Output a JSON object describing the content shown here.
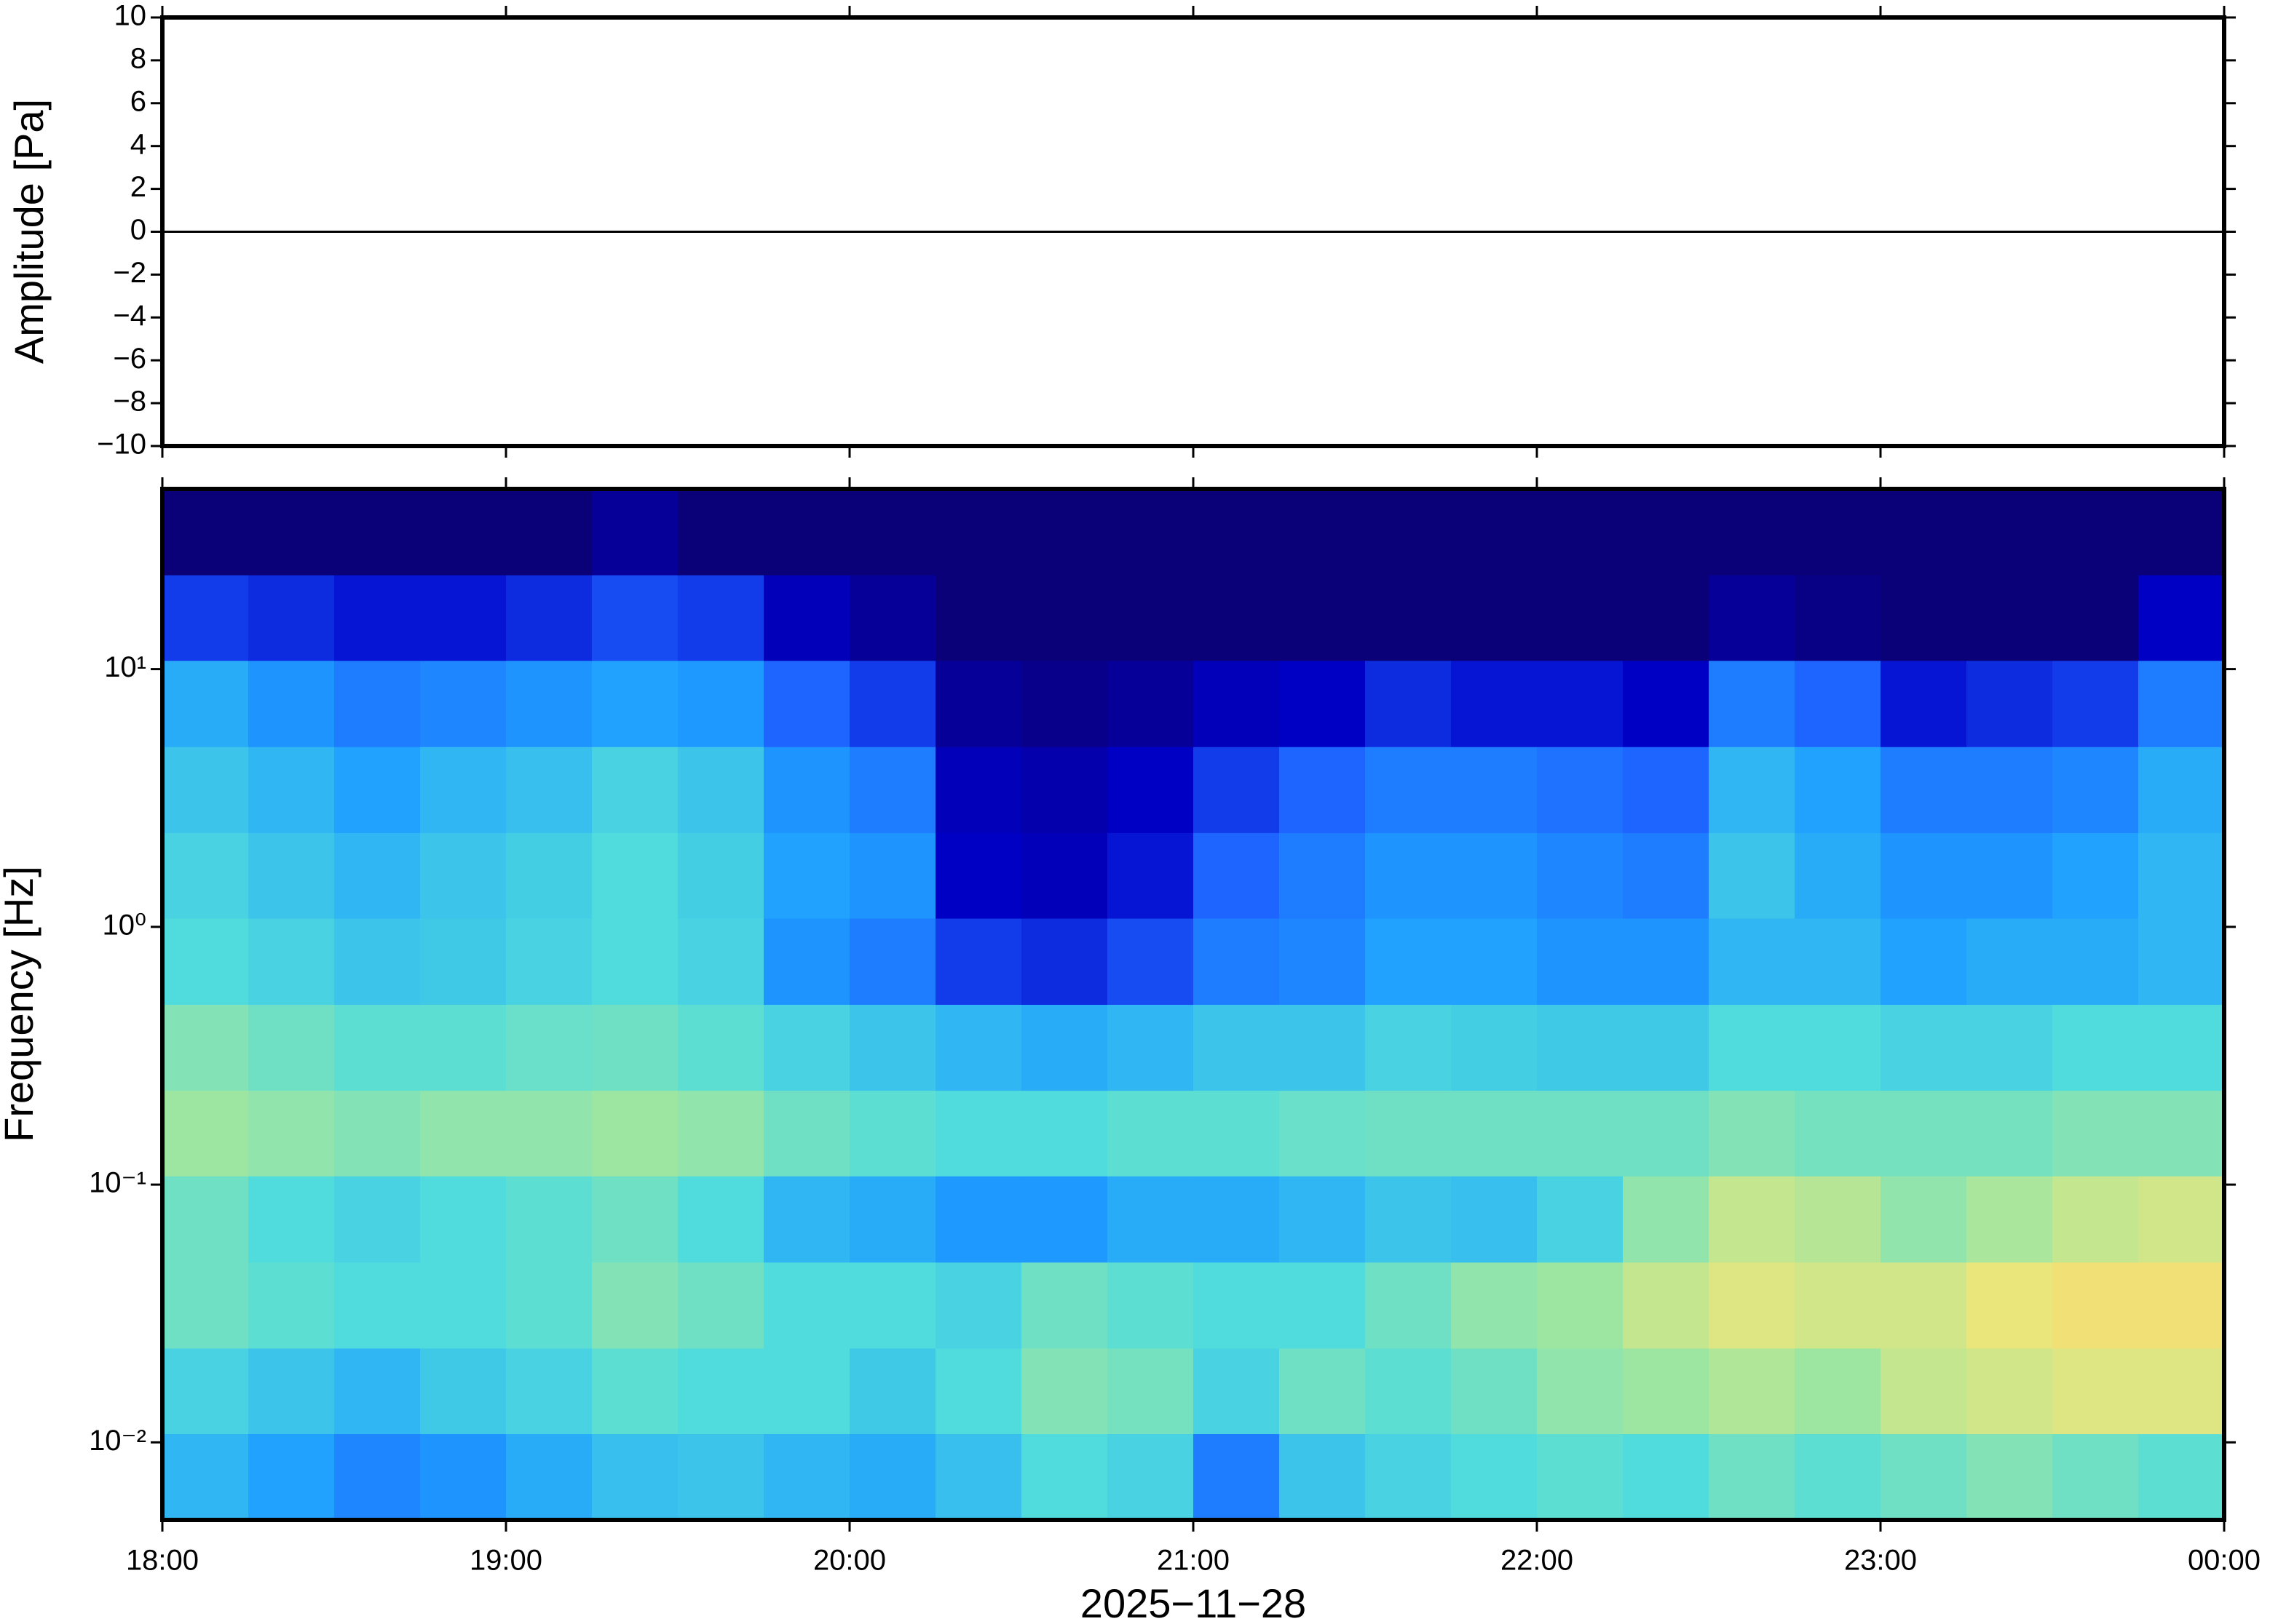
{
  "chart_data": [
    {
      "type": "line",
      "ylabel": "Amplitude [Pa]",
      "x": [
        18,
        18.5,
        19,
        19.5,
        20,
        20.5,
        21,
        21.5,
        22,
        22.5,
        23,
        23.5,
        24
      ],
      "values": [
        0,
        0,
        0,
        0,
        0,
        0,
        0,
        0,
        0,
        0,
        0,
        0,
        0
      ],
      "color": "#000000",
      "xlim": [
        18,
        24
      ],
      "xticks": [
        18,
        19,
        20,
        21,
        22,
        23,
        24
      ],
      "ylim": [
        -10,
        10
      ],
      "yticks": [
        {
          "value": -10,
          "label": "−10"
        },
        {
          "value": -8,
          "label": "−8"
        },
        {
          "value": -6,
          "label": "−6"
        },
        {
          "value": -4,
          "label": "−4"
        },
        {
          "value": -2,
          "label": "−2"
        },
        0,
        2,
        4,
        6,
        8,
        10
      ]
    },
    {
      "type": "heatmap",
      "ylabel": "Frequency [Hz]",
      "xlabel": "2025−11−28",
      "ylog": true,
      "xlim": [
        18,
        24
      ],
      "xticks": [
        {
          "value": 18,
          "label": "18:00"
        },
        {
          "value": 19,
          "label": "19:00"
        },
        {
          "value": 20,
          "label": "20:00"
        },
        {
          "value": 21,
          "label": "21:00"
        },
        {
          "value": 22,
          "label": "22:00"
        },
        {
          "value": 23,
          "label": "23:00"
        },
        {
          "value": 24,
          "label": "00:00"
        }
      ],
      "ylim": [
        0.005,
        50
      ],
      "yticks": [
        {
          "value": 0.01,
          "label": "10⁻²"
        },
        {
          "value": 0.1,
          "label": "10⁻¹"
        },
        {
          "value": 1,
          "label": "10⁰"
        },
        {
          "value": 10,
          "label": "10¹"
        }
      ],
      "x_edges": [
        18,
        18.25,
        18.5,
        18.75,
        19,
        19.25,
        19.5,
        19.75,
        20,
        20.25,
        20.5,
        20.75,
        21,
        21.25,
        21.5,
        21.75,
        22,
        22.25,
        22.5,
        22.75,
        23,
        23.25,
        23.5,
        23.75,
        24
      ],
      "y_edges": [
        0.005,
        0.0108,
        0.0232,
        0.05,
        0.108,
        0.232,
        0.5,
        1.08,
        2.32,
        5,
        10.8,
        23.2,
        50
      ],
      "zlim": [
        0,
        1
      ],
      "colormap": [
        "#0a0078",
        "#0000c8",
        "#1e64ff",
        "#1ea0ff",
        "#50dcdc",
        "#a0e6a0",
        "#f0e678",
        "#ffa050",
        "#e05030"
      ],
      "z": [
        [
          0.42,
          0.38,
          0.32,
          0.35,
          0.4,
          0.44,
          0.45,
          0.42,
          0.4,
          0.44,
          0.5,
          0.48,
          0.3,
          0.45,
          0.48,
          0.5,
          0.52,
          0.5,
          0.55,
          0.52,
          0.55,
          0.58,
          0.55,
          0.52
        ],
        [
          0.48,
          0.45,
          0.42,
          0.46,
          0.48,
          0.52,
          0.5,
          0.5,
          0.46,
          0.5,
          0.58,
          0.56,
          0.48,
          0.55,
          0.52,
          0.55,
          0.6,
          0.62,
          0.65,
          0.62,
          0.68,
          0.7,
          0.72,
          0.72
        ],
        [
          0.55,
          0.52,
          0.5,
          0.5,
          0.52,
          0.58,
          0.55,
          0.5,
          0.5,
          0.48,
          0.55,
          0.52,
          0.5,
          0.5,
          0.55,
          0.6,
          0.62,
          0.68,
          0.72,
          0.7,
          0.7,
          0.74,
          0.76,
          0.76
        ],
        [
          0.55,
          0.5,
          0.48,
          0.5,
          0.52,
          0.55,
          0.5,
          0.42,
          0.4,
          0.36,
          0.36,
          0.4,
          0.4,
          0.42,
          0.45,
          0.44,
          0.48,
          0.6,
          0.68,
          0.66,
          0.6,
          0.64,
          0.68,
          0.7
        ],
        [
          0.62,
          0.6,
          0.58,
          0.6,
          0.6,
          0.62,
          0.6,
          0.55,
          0.52,
          0.5,
          0.5,
          0.52,
          0.52,
          0.54,
          0.55,
          0.55,
          0.55,
          0.55,
          0.58,
          0.56,
          0.56,
          0.56,
          0.58,
          0.58
        ],
        [
          0.58,
          0.55,
          0.52,
          0.52,
          0.54,
          0.55,
          0.52,
          0.48,
          0.45,
          0.42,
          0.4,
          0.42,
          0.45,
          0.45,
          0.48,
          0.47,
          0.46,
          0.46,
          0.5,
          0.5,
          0.48,
          0.48,
          0.5,
          0.5
        ],
        [
          0.5,
          0.48,
          0.45,
          0.46,
          0.48,
          0.5,
          0.48,
          0.35,
          0.3,
          0.2,
          0.18,
          0.22,
          0.3,
          0.32,
          0.38,
          0.38,
          0.35,
          0.35,
          0.42,
          0.42,
          0.38,
          0.4,
          0.4,
          0.42
        ],
        [
          0.48,
          0.45,
          0.42,
          0.45,
          0.47,
          0.5,
          0.47,
          0.38,
          0.35,
          0.12,
          0.1,
          0.15,
          0.25,
          0.3,
          0.35,
          0.35,
          0.32,
          0.3,
          0.45,
          0.4,
          0.35,
          0.35,
          0.38,
          0.42
        ],
        [
          0.45,
          0.42,
          0.38,
          0.42,
          0.44,
          0.48,
          0.45,
          0.35,
          0.3,
          0.1,
          0.08,
          0.12,
          0.2,
          0.25,
          0.3,
          0.3,
          0.28,
          0.25,
          0.42,
          0.38,
          0.3,
          0.3,
          0.32,
          0.4
        ],
        [
          0.4,
          0.35,
          0.3,
          0.32,
          0.35,
          0.38,
          0.36,
          0.25,
          0.2,
          0.05,
          0.03,
          0.05,
          0.1,
          0.12,
          0.18,
          0.15,
          0.15,
          0.12,
          0.3,
          0.25,
          0.15,
          0.18,
          0.2,
          0.3
        ],
        [
          0.2,
          0.18,
          0.15,
          0.15,
          0.18,
          0.22,
          0.2,
          0.1,
          0.05,
          0,
          0,
          0,
          0,
          0,
          0,
          0,
          0,
          0,
          0.05,
          0.02,
          0,
          0,
          0,
          0.12
        ],
        [
          0,
          0,
          0,
          0,
          0,
          0.05,
          0,
          0,
          0,
          0,
          0,
          0,
          0,
          0,
          0,
          0,
          0,
          0,
          0,
          0,
          0,
          0,
          0,
          0
        ]
      ]
    }
  ]
}
